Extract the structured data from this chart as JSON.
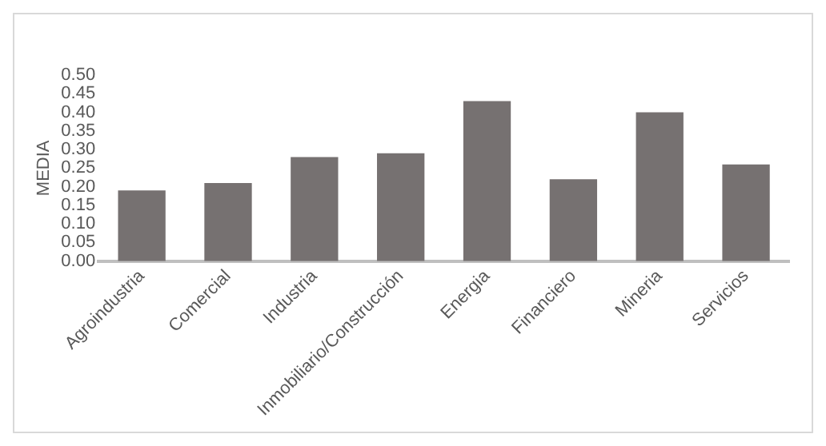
{
  "chart_data": {
    "type": "bar",
    "ylabel": "MEDIA",
    "categories": [
      "Agroindustria",
      "Comercial",
      "Industria",
      "Inmobiliario/Construcción",
      "Energia",
      "Financiero",
      "Mineria",
      "Servicios"
    ],
    "values": [
      0.19,
      0.21,
      0.28,
      0.29,
      0.43,
      0.22,
      0.4,
      0.26
    ],
    "color": "#767171",
    "ylim": [
      0,
      0.5
    ],
    "yticks": [
      {
        "value": 0,
        "label": "0.00"
      },
      {
        "value": 0.05,
        "label": "0.05"
      },
      {
        "value": 0.1,
        "label": "0.10"
      },
      {
        "value": 0.15,
        "label": "0.15"
      },
      {
        "value": 0.2,
        "label": "0.20"
      },
      {
        "value": 0.25,
        "label": "0.25"
      },
      {
        "value": 0.3,
        "label": "0.30"
      },
      {
        "value": 0.35,
        "label": "0.35"
      },
      {
        "value": 0.4,
        "label": "0.40"
      },
      {
        "value": 0.45,
        "label": "0.45"
      },
      {
        "value": 0.5,
        "label": "0.50"
      }
    ],
    "grid": false,
    "legend": false
  }
}
